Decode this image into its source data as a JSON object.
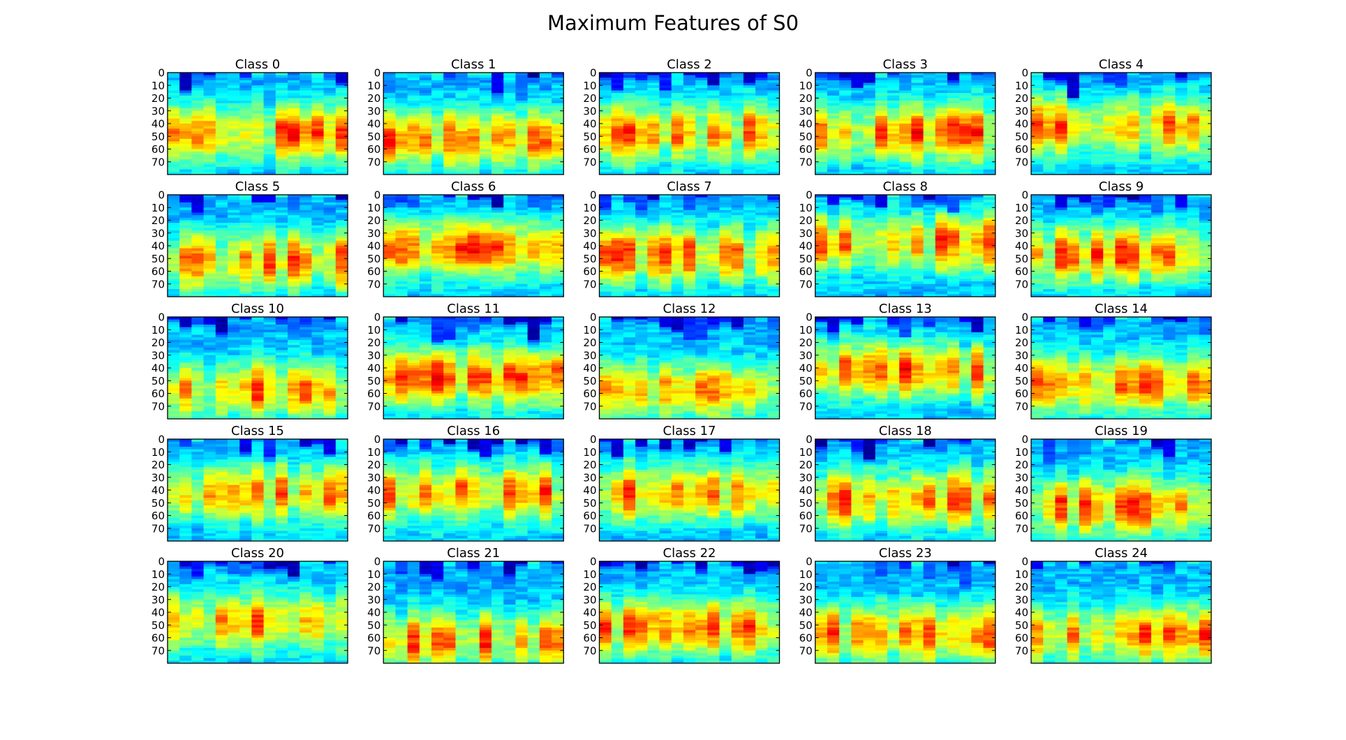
{
  "chart_data": {
    "type": "heatmap",
    "title": "Maximum Features of S0",
    "grid": false,
    "colormap": "jet",
    "rows": 80,
    "columns": 15,
    "ylim": [
      80,
      0
    ],
    "yticks": [
      "0",
      "10",
      "20",
      "30",
      "40",
      "50",
      "60",
      "70"
    ],
    "panels": [
      {
        "title": "Class 0",
        "peak_row": 45
      },
      {
        "title": "Class 1",
        "peak_row": 50
      },
      {
        "title": "Class 2",
        "peak_row": 45
      },
      {
        "title": "Class 3",
        "peak_row": 45
      },
      {
        "title": "Class 4",
        "peak_row": 40
      },
      {
        "title": "Class 5",
        "peak_row": 50
      },
      {
        "title": "Class 6",
        "peak_row": 40
      },
      {
        "title": "Class 7",
        "peak_row": 45
      },
      {
        "title": "Class 8",
        "peak_row": 35
      },
      {
        "title": "Class 9",
        "peak_row": 45
      },
      {
        "title": "Class 10",
        "peak_row": 55
      },
      {
        "title": "Class 11",
        "peak_row": 45
      },
      {
        "title": "Class 12",
        "peak_row": 55
      },
      {
        "title": "Class 13",
        "peak_row": 40
      },
      {
        "title": "Class 14",
        "peak_row": 50
      },
      {
        "title": "Class 15",
        "peak_row": 40
      },
      {
        "title": "Class 16",
        "peak_row": 40
      },
      {
        "title": "Class 17",
        "peak_row": 40
      },
      {
        "title": "Class 18",
        "peak_row": 45
      },
      {
        "title": "Class 19",
        "peak_row": 50
      },
      {
        "title": "Class 20",
        "peak_row": 45
      },
      {
        "title": "Class 21",
        "peak_row": 60
      },
      {
        "title": "Class 22",
        "peak_row": 50
      },
      {
        "title": "Class 23",
        "peak_row": 55
      },
      {
        "title": "Class 24",
        "peak_row": 55
      }
    ]
  }
}
